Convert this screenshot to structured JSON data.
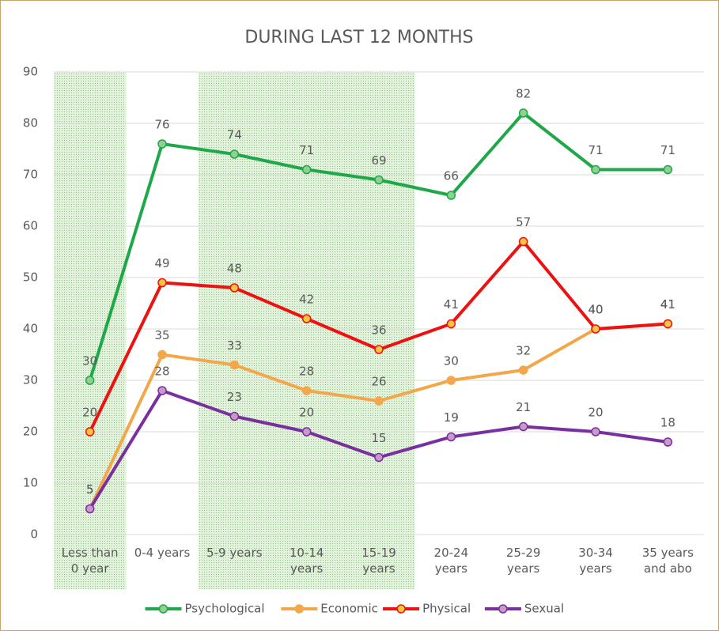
{
  "chart_data": {
    "type": "line",
    "title": "DURING LAST 12 MONTHS",
    "categories": [
      "Less than\n0 year",
      "0-4 years",
      "5-9 years",
      "10-14\nyears",
      "15-19\nyears",
      "20-24\nyears",
      "25-29\nyears",
      "30-34\nyears",
      "35 years\nand abo"
    ],
    "series": [
      {
        "name": "Psychological",
        "color": "#1fa84a",
        "marker_fill": "#8fd18f",
        "values": [
          30,
          76,
          74,
          71,
          69,
          66,
          82,
          71,
          71
        ]
      },
      {
        "name": "Economic",
        "color": "#f2a84a",
        "marker_fill": "#f2a84a",
        "values": [
          5,
          35,
          33,
          28,
          26,
          30,
          32,
          40,
          41
        ]
      },
      {
        "name": "Physical",
        "color": "#ee1111",
        "marker_fill": "#f5c542",
        "values": [
          20,
          49,
          48,
          42,
          36,
          41,
          57,
          40,
          41
        ]
      },
      {
        "name": "Sexual",
        "color": "#7a2f9e",
        "marker_fill": "#c79acb",
        "values": [
          5,
          28,
          23,
          20,
          15,
          19,
          21,
          20,
          18
        ]
      }
    ],
    "highlight": [
      0,
      2,
      3,
      4
    ],
    "ylim": [
      0,
      90
    ],
    "yticks": [
      0,
      10,
      20,
      30,
      40,
      50,
      60,
      70,
      80,
      90
    ],
    "grid": true
  }
}
